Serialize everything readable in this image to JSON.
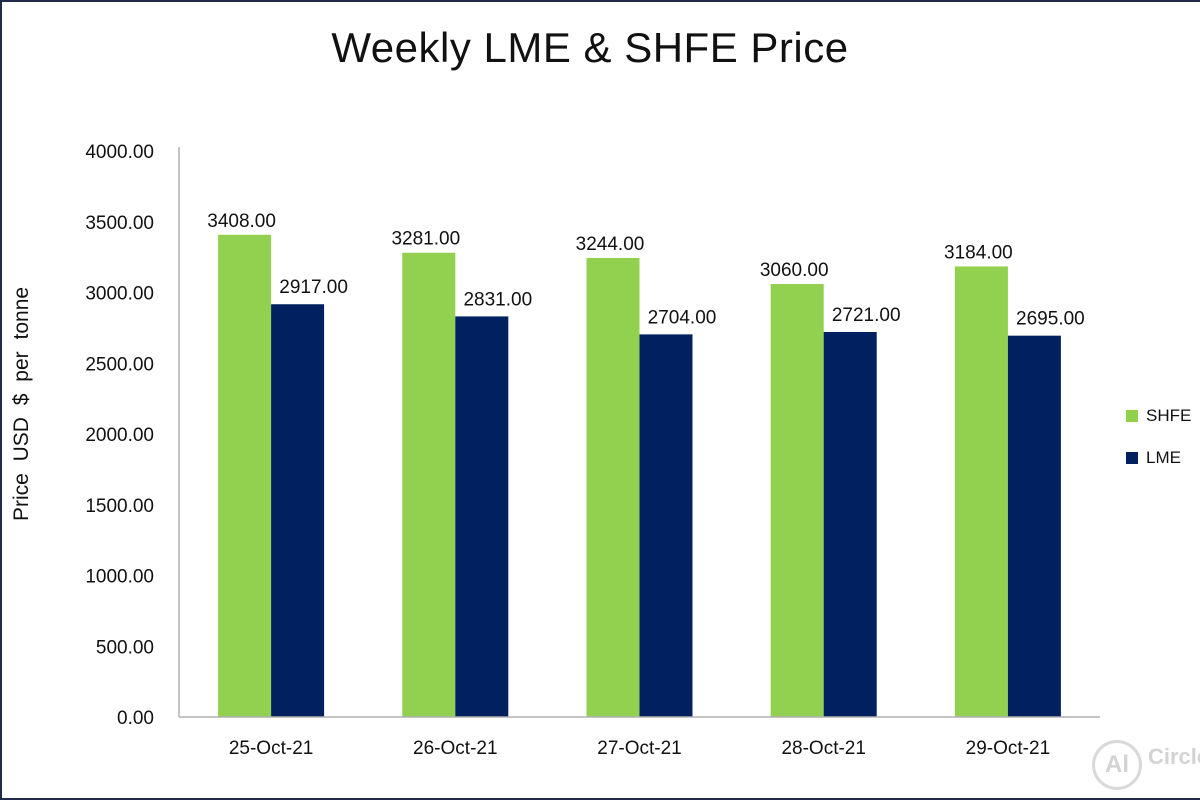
{
  "chart_data": {
    "type": "bar",
    "title": "Weekly LME & SHFE Price",
    "xlabel": "",
    "ylabel": "Price USD $ per tonne",
    "categories": [
      "25-Oct-21",
      "26-Oct-21",
      "27-Oct-21",
      "28-Oct-21",
      "29-Oct-21"
    ],
    "series": [
      {
        "name": "SHFE",
        "color": "#92d050",
        "values": [
          3408.0,
          3281.0,
          3244.0,
          3060.0,
          3184.0
        ],
        "labels": [
          "3408.00",
          "3281.00",
          "3244.00",
          "3060.00",
          "3184.00"
        ]
      },
      {
        "name": "LME",
        "color": "#002060",
        "values": [
          2917.0,
          2831.0,
          2704.0,
          2721.0,
          2695.0
        ],
        "labels": [
          "2917.00",
          "2831.00",
          "2704.00",
          "2721.00",
          "2695.00"
        ]
      }
    ],
    "ylim": [
      0,
      4000
    ],
    "yticks": [
      "0.00",
      "500.00",
      "1000.00",
      "1500.00",
      "2000.00",
      "2500.00",
      "3000.00",
      "3500.00",
      "4000.00"
    ],
    "grid": false,
    "legend_position": "right"
  },
  "watermark": {
    "logo_text": "Al",
    "brand_text": "Circle"
  }
}
